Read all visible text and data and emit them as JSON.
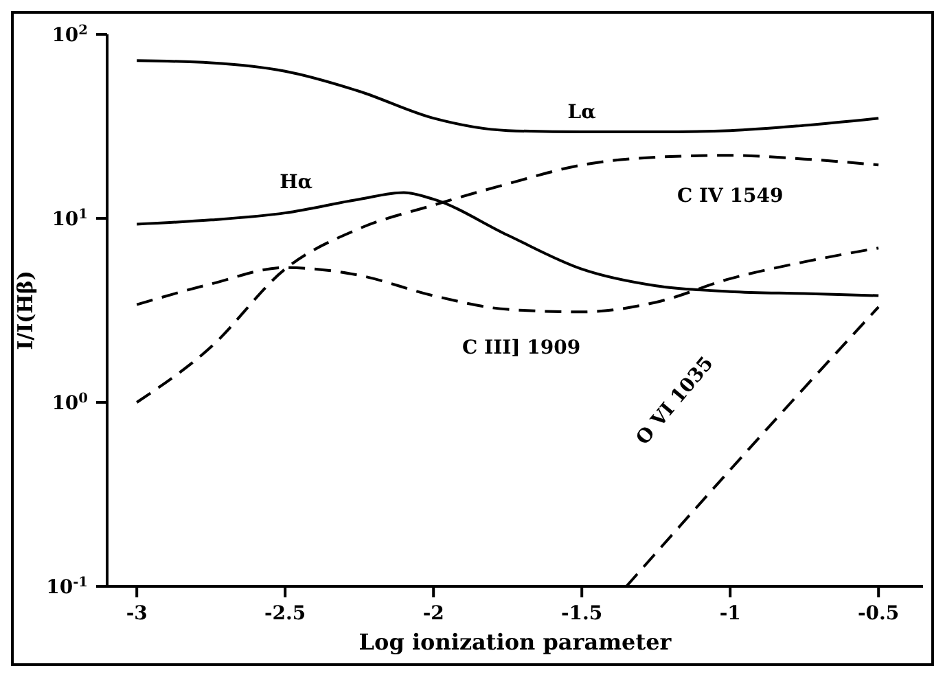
{
  "chart_data": {
    "type": "line",
    "xlabel": "Log ionization parameter",
    "ylabel": "I/I(Hβ)",
    "log": "y",
    "marker": "none",
    "xlim": [
      -3.1,
      -0.35
    ],
    "xticks": [
      -3,
      -2.5,
      -2,
      -1.5,
      -1,
      -0.5
    ],
    "ylim": [
      0.1,
      100
    ],
    "yticks": [
      {
        "value": 0.1,
        "label": "10$^{-1}$"
      },
      {
        "value": 1,
        "label": "10$^{0}$"
      },
      {
        "value": 10,
        "label": "10$^{1}$"
      },
      {
        "value": 100,
        "label": "10$^{2}$"
      }
    ],
    "x": [
      -3,
      -2.75,
      -2.5,
      -2.25,
      -2,
      -1.75,
      -1.5,
      -1.25,
      -1,
      -0.75,
      -0.5
    ],
    "series": [
      {
        "name": "Lα",
        "color": "#000000",
        "line_style": "solid",
        "values": [
          72,
          70,
          63,
          49,
          35,
          30,
          29.5,
          29.5,
          30,
          32,
          35
        ]
      },
      {
        "name": "Hα",
        "color": "#000000",
        "line_style": "solid",
        "x": [
          -3,
          -2.75,
          -2.5,
          -2.25,
          -2.1,
          -2,
          -1.75,
          -1.5,
          -1.25,
          -1,
          -0.75,
          -0.5
        ],
        "values": [
          9.3,
          9.8,
          10.7,
          12.7,
          13.8,
          12.7,
          8.1,
          5.3,
          4.3,
          4,
          3.9,
          3.8
        ]
      },
      {
        "name": "C IV 1549",
        "color": "#000000",
        "line_style": "dashed",
        "values": [
          1,
          2,
          5.3,
          8.8,
          11.8,
          15.4,
          19.5,
          21.5,
          22,
          21,
          19.5
        ]
      },
      {
        "name": "C III] 1909",
        "color": "#000000",
        "line_style": "dashed",
        "values": [
          3.4,
          4.4,
          5.4,
          4.9,
          3.8,
          3.2,
          3.1,
          3.5,
          4.7,
          5.8,
          6.9
        ]
      },
      {
        "name": "O VI 1035",
        "color": "#000000",
        "line_style": "dashed",
        "x": [
          -1.35,
          -1,
          -0.75,
          -0.5
        ],
        "values": [
          0.1,
          0.43,
          1.2,
          3.3
        ]
      }
    ]
  }
}
